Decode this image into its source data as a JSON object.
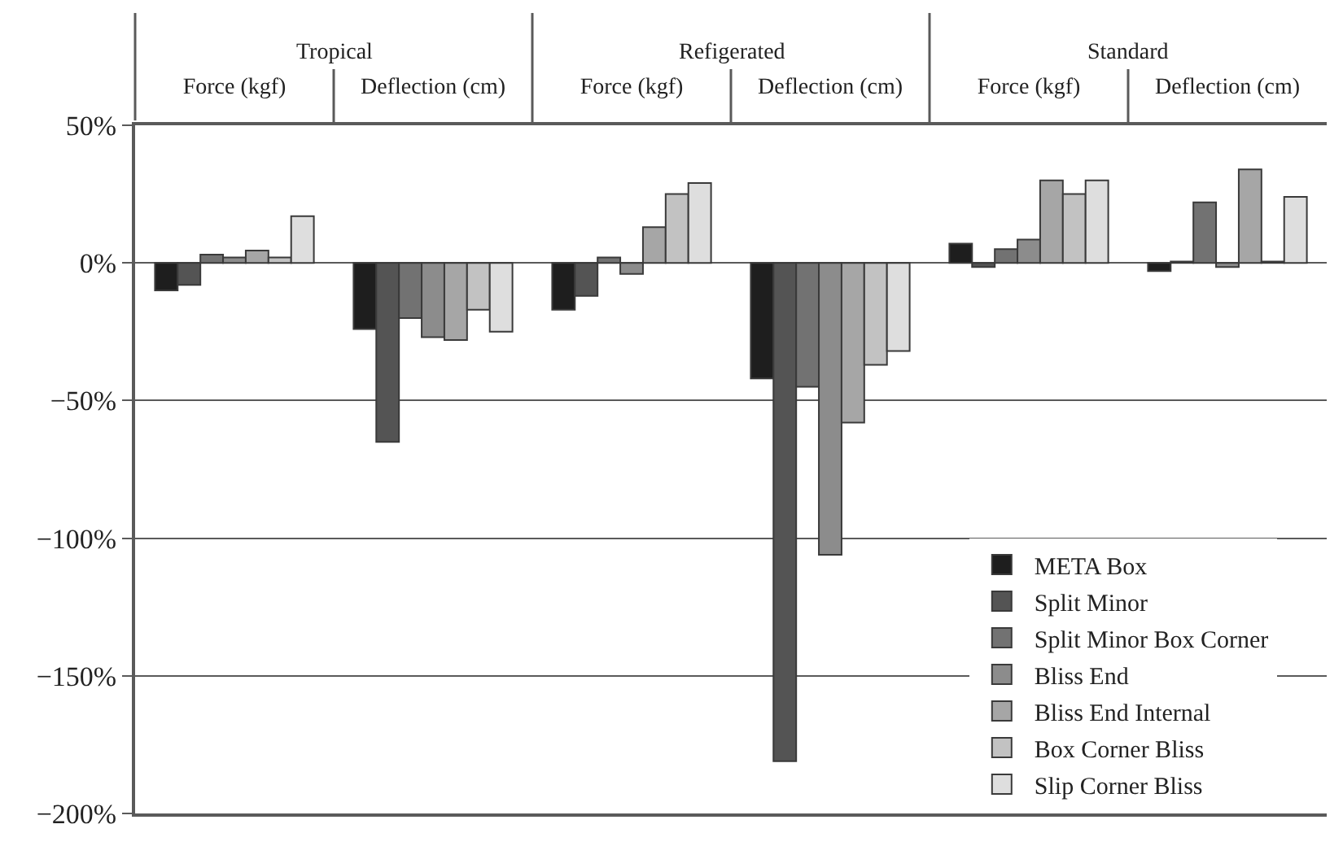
{
  "chart_data": {
    "type": "bar",
    "categories": [
      "Force (kgf)",
      "Deflection (cm)",
      "Force (kgf)",
      "Deflection (cm)",
      "Force (kgf)",
      "Deflection (cm)"
    ],
    "annotations": [
      "Tropical",
      "Refigerated",
      "Standard"
    ],
    "series": [
      {
        "name": "META Box",
        "color": "#1e1e1e",
        "values": [
          -10,
          -24,
          -17,
          -42,
          7,
          -3
        ]
      },
      {
        "name": "Split Minor",
        "color": "#545454",
        "values": [
          -8,
          -65,
          -12,
          -181,
          -1.5,
          0.5
        ]
      },
      {
        "name": "Split Minor Box Corner",
        "color": "#727272",
        "values": [
          3,
          -20,
          2,
          -45,
          5,
          22
        ]
      },
      {
        "name": "Bliss End",
        "color": "#8c8c8c",
        "values": [
          2,
          -27,
          -4,
          -106,
          8.5,
          -1.5
        ]
      },
      {
        "name": "Bliss End Internal",
        "color": "#a6a6a6",
        "values": [
          4.5,
          -28,
          13,
          -58,
          30,
          34
        ]
      },
      {
        "name": "Box Corner Bliss",
        "color": "#c2c2c2",
        "values": [
          2,
          -17,
          25,
          -37,
          25,
          0.5
        ]
      },
      {
        "name": "Slip Corner Bliss",
        "color": "#dedede",
        "values": [
          17,
          -25,
          29,
          -32,
          30,
          24
        ]
      }
    ],
    "ylim": [
      -200,
      50
    ],
    "yticks": [
      {
        "value": 50,
        "label": "50%"
      },
      {
        "value": 0,
        "label": "0%"
      },
      {
        "value": -50,
        "label": "−50%"
      },
      {
        "value": -100,
        "label": "−100%"
      },
      {
        "value": -150,
        "label": "−150%"
      },
      {
        "value": -200,
        "label": "−200%"
      }
    ],
    "grid": "y",
    "legend": "bottom right"
  }
}
